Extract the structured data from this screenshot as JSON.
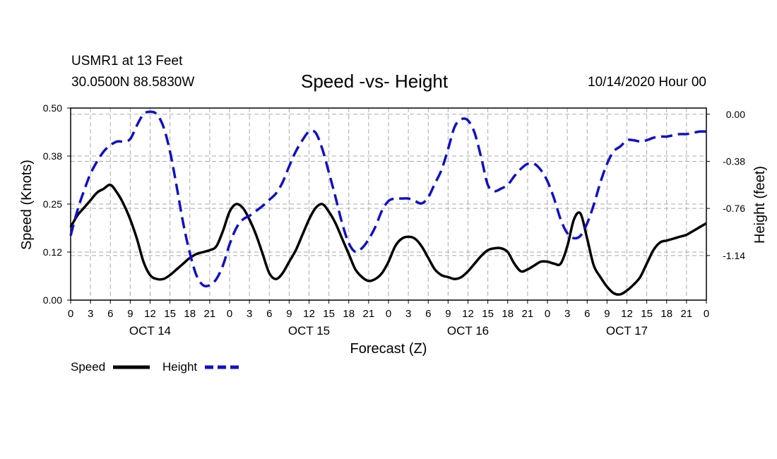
{
  "header": {
    "station": "USMR1 at 13 Feet",
    "coords": "30.0500N 88.5830W",
    "title": "Speed -vs- Height",
    "datetime": "10/14/2020 Hour 00"
  },
  "colors": {
    "speed": "#000000",
    "height": "#1010cc",
    "grid": "#aaaaaa"
  },
  "chart_data": {
    "type": "line",
    "title": "Speed -vs- Height",
    "xlabel": "Forecast (Z)",
    "ylabel": "Speed (Knots)",
    "y2label": "Height (feet)",
    "xlim": [
      0,
      96
    ],
    "ylim": [
      0,
      0.5
    ],
    "y2lim": [
      -1.5,
      0.05
    ],
    "grid": true,
    "legend_position": "bottom-left",
    "x_tick_labels": [
      "0",
      "3",
      "6",
      "9",
      "12",
      "15",
      "18",
      "21",
      "0",
      "3",
      "6",
      "9",
      "12",
      "15",
      "18",
      "21",
      "0",
      "3",
      "6",
      "9",
      "12",
      "15",
      "18",
      "21",
      "0",
      "3",
      "6",
      "9",
      "12",
      "15",
      "18",
      "21",
      "0"
    ],
    "day_labels": [
      {
        "label": "OCT 14",
        "x": 12
      },
      {
        "label": "OCT 15",
        "x": 36
      },
      {
        "label": "OCT 16",
        "x": 60
      },
      {
        "label": "OCT 17",
        "x": 84
      }
    ],
    "y_tick_labels": [
      "0.50",
      "0.38",
      "0.25",
      "0.12",
      "0.00"
    ],
    "y_ticks": [
      0.5,
      0.375,
      0.25,
      0.125,
      0.0
    ],
    "y2_tick_labels": [
      "0.00",
      "-0.38",
      "-0.76",
      "-1.14"
    ],
    "y2_ticks": [
      0.0,
      -0.38,
      -0.76,
      -1.14
    ],
    "series": [
      {
        "name": "Speed",
        "axis": "left",
        "style": "solid",
        "x": [
          0,
          1,
          2,
          3,
          4,
          5,
          6,
          7,
          8,
          9,
          10,
          11,
          12,
          13,
          14,
          15,
          16,
          17,
          18,
          19,
          20,
          21,
          22,
          23,
          24,
          25,
          26,
          27,
          28,
          29,
          30,
          31,
          32,
          33,
          34,
          35,
          36,
          37,
          38,
          39,
          40,
          41,
          42,
          43,
          44,
          45,
          46,
          47,
          48,
          49,
          50,
          51,
          52,
          53,
          54,
          55,
          56,
          57,
          58,
          59,
          60,
          61,
          62,
          63,
          64,
          65,
          66,
          67,
          68,
          69,
          70,
          71,
          72,
          73,
          74,
          75,
          76,
          77,
          78,
          79,
          80,
          81,
          82,
          83,
          84,
          85,
          86,
          87,
          88,
          89,
          90,
          91,
          92,
          93,
          94,
          95,
          96
        ],
        "values": [
          0.19,
          0.22,
          0.24,
          0.26,
          0.28,
          0.29,
          0.3,
          0.28,
          0.25,
          0.21,
          0.16,
          0.1,
          0.065,
          0.055,
          0.055,
          0.065,
          0.08,
          0.095,
          0.11,
          0.12,
          0.125,
          0.13,
          0.14,
          0.18,
          0.23,
          0.25,
          0.24,
          0.21,
          0.17,
          0.12,
          0.07,
          0.055,
          0.07,
          0.1,
          0.13,
          0.17,
          0.21,
          0.24,
          0.25,
          0.23,
          0.2,
          0.16,
          0.12,
          0.08,
          0.06,
          0.05,
          0.055,
          0.07,
          0.1,
          0.14,
          0.16,
          0.165,
          0.16,
          0.14,
          0.11,
          0.08,
          0.065,
          0.06,
          0.055,
          0.06,
          0.075,
          0.095,
          0.115,
          0.13,
          0.135,
          0.135,
          0.125,
          0.095,
          0.075,
          0.08,
          0.09,
          0.1,
          0.1,
          0.095,
          0.095,
          0.14,
          0.21,
          0.225,
          0.16,
          0.09,
          0.06,
          0.035,
          0.018,
          0.015,
          0.025,
          0.04,
          0.06,
          0.095,
          0.13,
          0.15,
          0.155,
          0.16,
          0.165,
          0.17,
          0.18,
          0.19,
          0.2
        ]
      },
      {
        "name": "Height",
        "axis": "right",
        "style": "dashed",
        "x": [
          0,
          1,
          2,
          3,
          4,
          5,
          6,
          7,
          8,
          9,
          10,
          11,
          12,
          13,
          14,
          15,
          16,
          17,
          18,
          19,
          20,
          21,
          22,
          23,
          24,
          25,
          26,
          27,
          28,
          29,
          30,
          31,
          32,
          33,
          34,
          35,
          36,
          37,
          38,
          39,
          40,
          41,
          42,
          43,
          44,
          45,
          46,
          47,
          48,
          49,
          50,
          51,
          52,
          53,
          54,
          55,
          56,
          57,
          58,
          59,
          60,
          61,
          62,
          63,
          64,
          65,
          66,
          67,
          68,
          69,
          70,
          71,
          72,
          73,
          74,
          75,
          76,
          77,
          78,
          79,
          80,
          81,
          82,
          83,
          84,
          85,
          86,
          87,
          88,
          89,
          90,
          91,
          92,
          93,
          94,
          95,
          96
        ],
        "values": [
          -0.98,
          -0.78,
          -0.62,
          -0.48,
          -0.38,
          -0.3,
          -0.25,
          -0.22,
          -0.22,
          -0.2,
          -0.09,
          0.0,
          0.02,
          0.0,
          -0.1,
          -0.3,
          -0.58,
          -0.88,
          -1.12,
          -1.3,
          -1.38,
          -1.38,
          -1.33,
          -1.22,
          -1.05,
          -0.92,
          -0.85,
          -0.82,
          -0.78,
          -0.74,
          -0.69,
          -0.64,
          -0.55,
          -0.42,
          -0.3,
          -0.21,
          -0.14,
          -0.15,
          -0.28,
          -0.47,
          -0.67,
          -0.88,
          -1.04,
          -1.11,
          -1.08,
          -1.01,
          -0.91,
          -0.78,
          -0.7,
          -0.68,
          -0.68,
          -0.68,
          -0.7,
          -0.72,
          -0.67,
          -0.56,
          -0.45,
          -0.28,
          -0.1,
          -0.04,
          -0.05,
          -0.15,
          -0.35,
          -0.57,
          -0.62,
          -0.6,
          -0.57,
          -0.5,
          -0.44,
          -0.4,
          -0.4,
          -0.45,
          -0.54,
          -0.68,
          -0.85,
          -0.96,
          -1.0,
          -0.98,
          -0.88,
          -0.73,
          -0.55,
          -0.4,
          -0.3,
          -0.26,
          -0.21,
          -0.21,
          -0.22,
          -0.21,
          -0.19,
          -0.18,
          -0.18,
          -0.17,
          -0.16,
          -0.16,
          -0.15,
          -0.14,
          -0.14
        ]
      }
    ]
  }
}
